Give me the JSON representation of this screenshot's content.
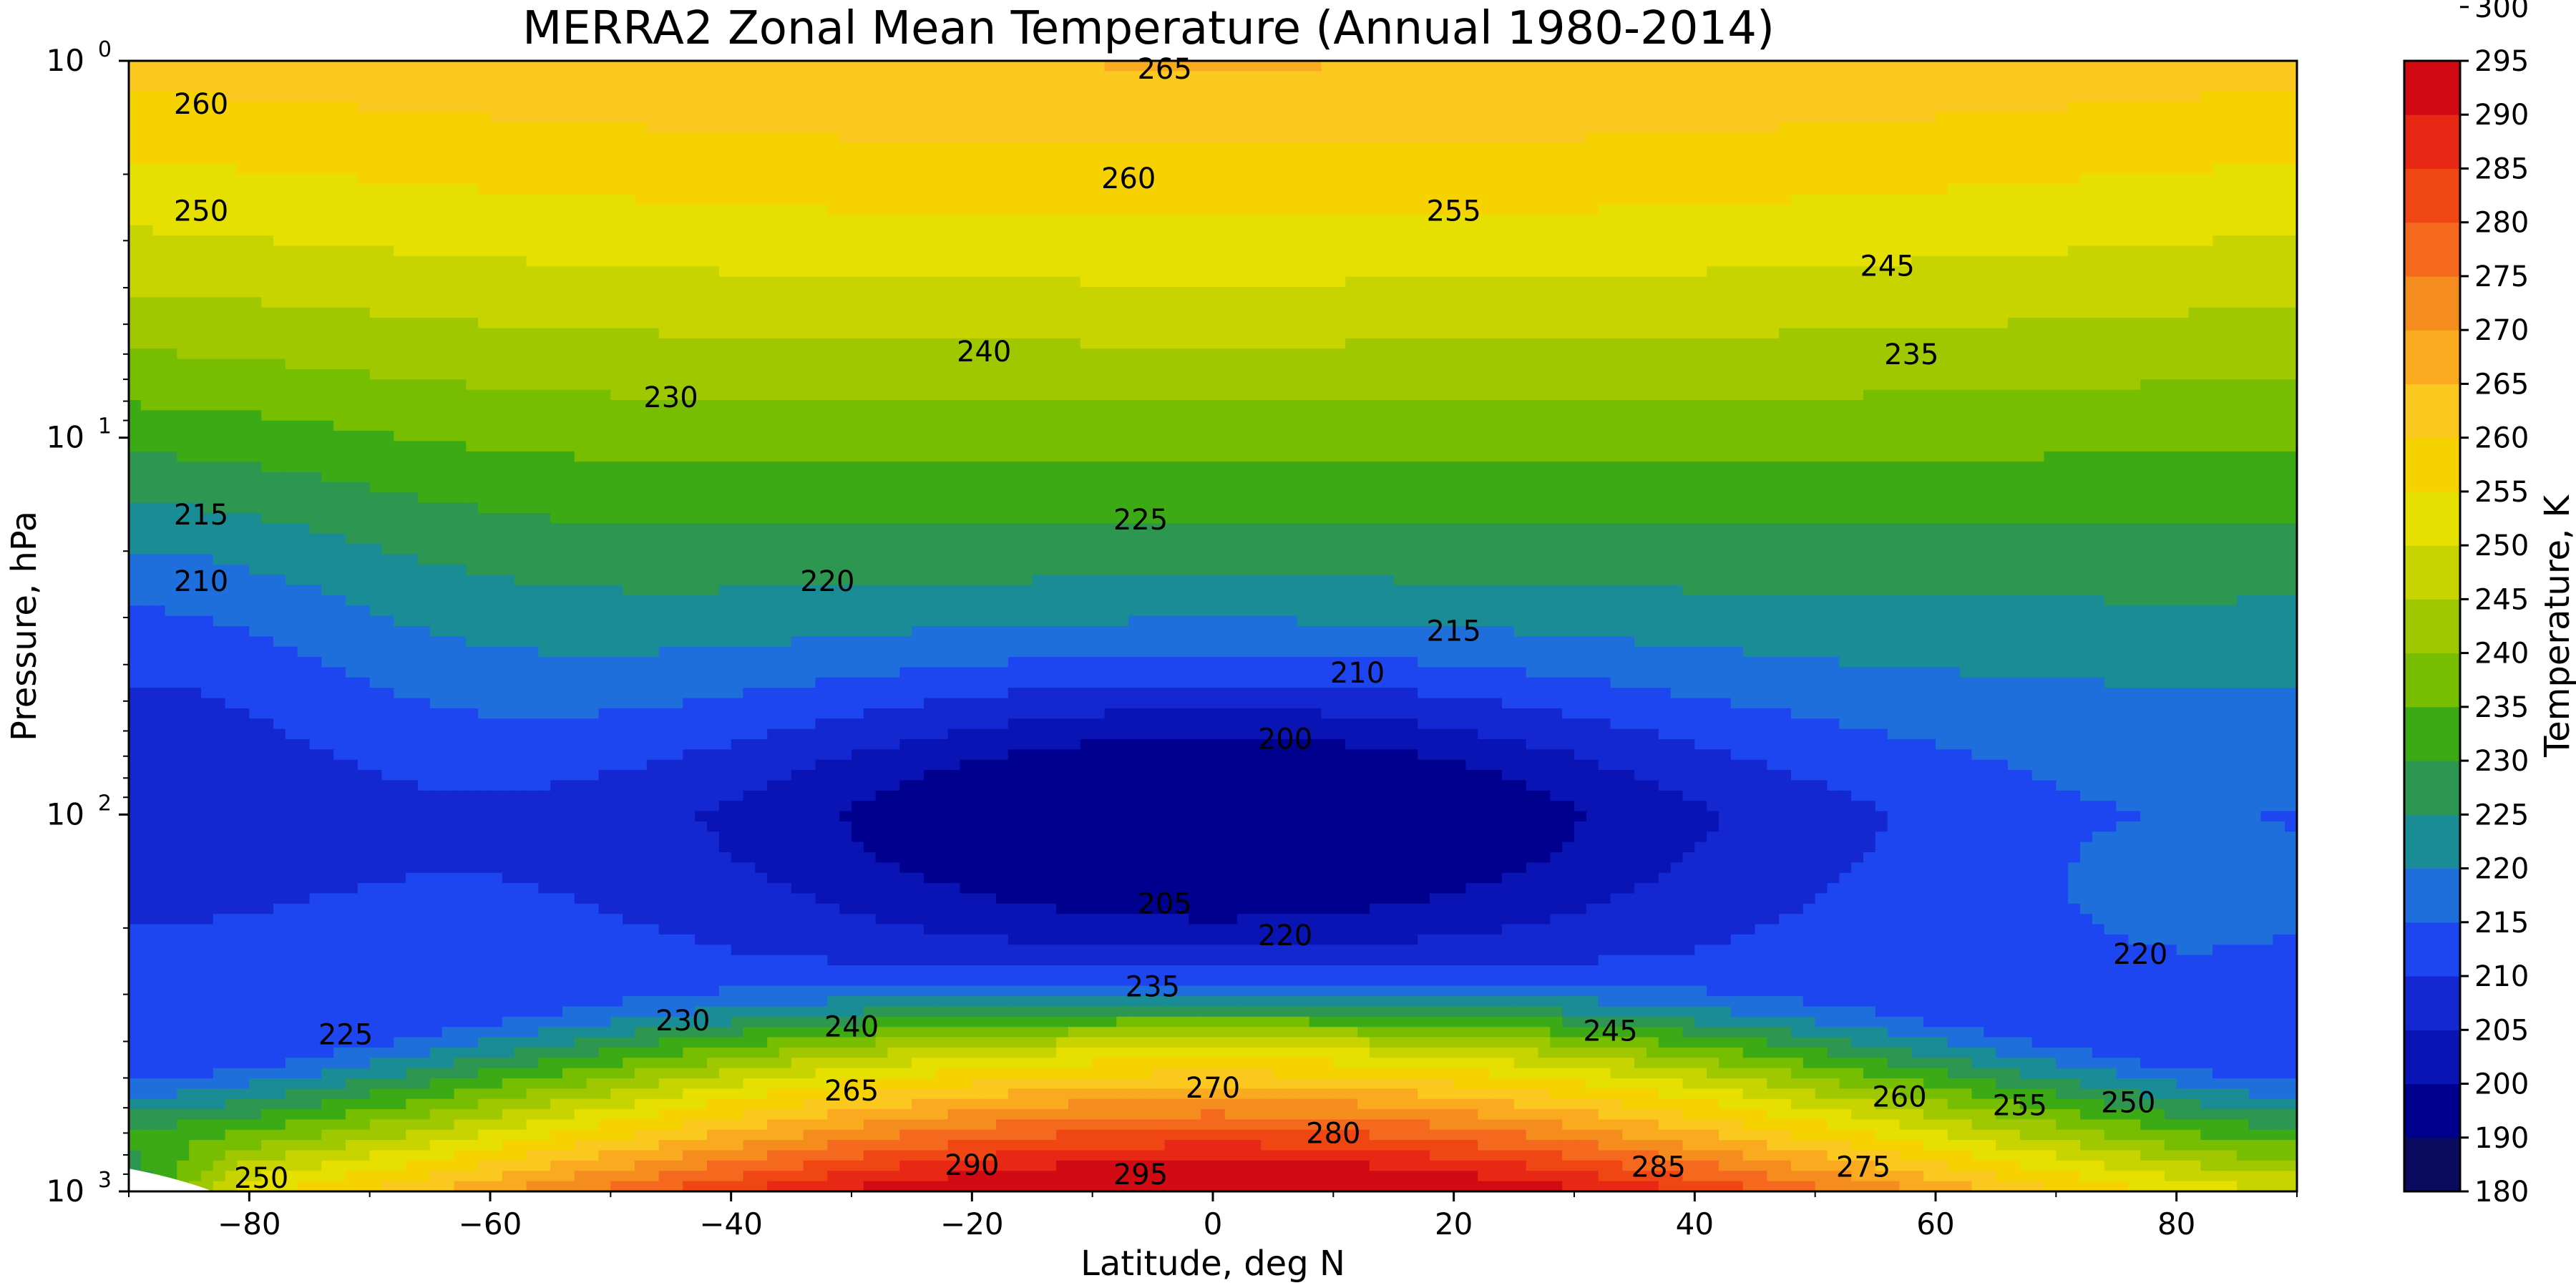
{
  "chart_data": {
    "type": "heatmap",
    "title": "MERRA2 Zonal Mean Temperature (Annual 1980-2014)",
    "xlabel": "Latitude, deg N",
    "ylabel": "Pressure, hPa",
    "xlim": [
      -90,
      90
    ],
    "ylim": [
      1000,
      1
    ],
    "yscale": "log",
    "y_inverted": true,
    "grid": false,
    "x_ticks": [
      -80,
      -60,
      -40,
      -20,
      0,
      20,
      40,
      60,
      80
    ],
    "x_tick_labels": [
      "−80",
      "−60",
      "−40",
      "−20",
      "0",
      "20",
      "40",
      "60",
      "80"
    ],
    "y_ticks": [
      {
        "value": 1,
        "base": "10",
        "exp": "0"
      },
      {
        "value": 10,
        "base": "10",
        "exp": "1"
      },
      {
        "value": 100,
        "base": "10",
        "exp": "2"
      },
      {
        "value": 1000,
        "base": "10",
        "exp": "3"
      }
    ],
    "colorbar": {
      "label": "Temperature, K",
      "levels": [
        180,
        190,
        200,
        205,
        210,
        215,
        220,
        225,
        230,
        235,
        240,
        245,
        250,
        255,
        260,
        265,
        270,
        275,
        280,
        285,
        290,
        295,
        300
      ],
      "tick_labels": [
        "180",
        "190",
        "200",
        "205",
        "210",
        "215",
        "220",
        "225",
        "230",
        "235",
        "240",
        "245",
        "250",
        "255",
        "260",
        "265",
        "270",
        "275",
        "280",
        "285",
        "290",
        "295",
        "300"
      ],
      "colors": [
        "#0a0a5f",
        "#00008e",
        "#0a14b4",
        "#1428d2",
        "#1e46f0",
        "#1e6edc",
        "#1a8c96",
        "#2d9650",
        "#3caa14",
        "#78be00",
        "#a0c800",
        "#c8d400",
        "#e6e000",
        "#f5d200",
        "#fac81e",
        "#faaa1e",
        "#f58c1e",
        "#f5691e",
        "#f04614",
        "#e62814",
        "#d20a14"
      ]
    },
    "contour_labels": [
      {
        "lat": -84,
        "p": 1.3,
        "text": "260"
      },
      {
        "lat": -84,
        "p": 2.5,
        "text": "250"
      },
      {
        "lat": -4,
        "p": 1.05,
        "text": "265"
      },
      {
        "lat": -7,
        "p": 2.05,
        "text": "260"
      },
      {
        "lat": 20,
        "p": 2.5,
        "text": "255"
      },
      {
        "lat": 56,
        "p": 3.5,
        "text": "245"
      },
      {
        "lat": -19,
        "p": 5.9,
        "text": "240"
      },
      {
        "lat": 58,
        "p": 6.0,
        "text": "235"
      },
      {
        "lat": -45,
        "p": 7.8,
        "text": "230"
      },
      {
        "lat": -6,
        "p": 16.5,
        "text": "225"
      },
      {
        "lat": -32,
        "p": 24,
        "text": "220"
      },
      {
        "lat": -84,
        "p": 16,
        "text": "215"
      },
      {
        "lat": -84,
        "p": 24,
        "text": "210"
      },
      {
        "lat": 20,
        "p": 32.5,
        "text": "215"
      },
      {
        "lat": 12,
        "p": 42,
        "text": "210"
      },
      {
        "lat": 6,
        "p": 63,
        "text": "200"
      },
      {
        "lat": -4,
        "p": 172,
        "text": "205"
      },
      {
        "lat": 6,
        "p": 209,
        "text": "220"
      },
      {
        "lat": 77,
        "p": 234,
        "text": "220"
      },
      {
        "lat": -5,
        "p": 286,
        "text": "235"
      },
      {
        "lat": -44,
        "p": 352,
        "text": "230"
      },
      {
        "lat": -30,
        "p": 365,
        "text": "240"
      },
      {
        "lat": -72,
        "p": 383,
        "text": "225"
      },
      {
        "lat": 33,
        "p": 375,
        "text": "245"
      },
      {
        "lat": -30,
        "p": 540,
        "text": "265"
      },
      {
        "lat": 0,
        "p": 530,
        "text": "270"
      },
      {
        "lat": 57,
        "p": 560,
        "text": "260"
      },
      {
        "lat": 67,
        "p": 590,
        "text": "255"
      },
      {
        "lat": 76,
        "p": 580,
        "text": "250"
      },
      {
        "lat": 10,
        "p": 700,
        "text": "280"
      },
      {
        "lat": -20,
        "p": 850,
        "text": "290"
      },
      {
        "lat": -6,
        "p": 900,
        "text": "295"
      },
      {
        "lat": 37,
        "p": 860,
        "text": "285"
      },
      {
        "lat": 54,
        "p": 860,
        "text": "275"
      },
      {
        "lat": -79,
        "p": 920,
        "text": "250"
      }
    ],
    "temperature_field_samples": [
      {
        "lat": -90,
        "p": 1,
        "t": 258
      },
      {
        "lat": 0,
        "p": 1,
        "t": 266
      },
      {
        "lat": 90,
        "p": 1,
        "t": 254
      },
      {
        "lat": -90,
        "p": 10,
        "t": 220
      },
      {
        "lat": 0,
        "p": 10,
        "t": 226
      },
      {
        "lat": 90,
        "p": 10,
        "t": 224
      },
      {
        "lat": -90,
        "p": 60,
        "t": 207
      },
      {
        "lat": 0,
        "p": 100,
        "t": 195
      },
      {
        "lat": 90,
        "p": 150,
        "t": 218
      },
      {
        "lat": -90,
        "p": 1000,
        "t": 248
      },
      {
        "lat": 0,
        "p": 1000,
        "t": 298
      },
      {
        "lat": 90,
        "p": 1000,
        "t": 258
      }
    ]
  }
}
